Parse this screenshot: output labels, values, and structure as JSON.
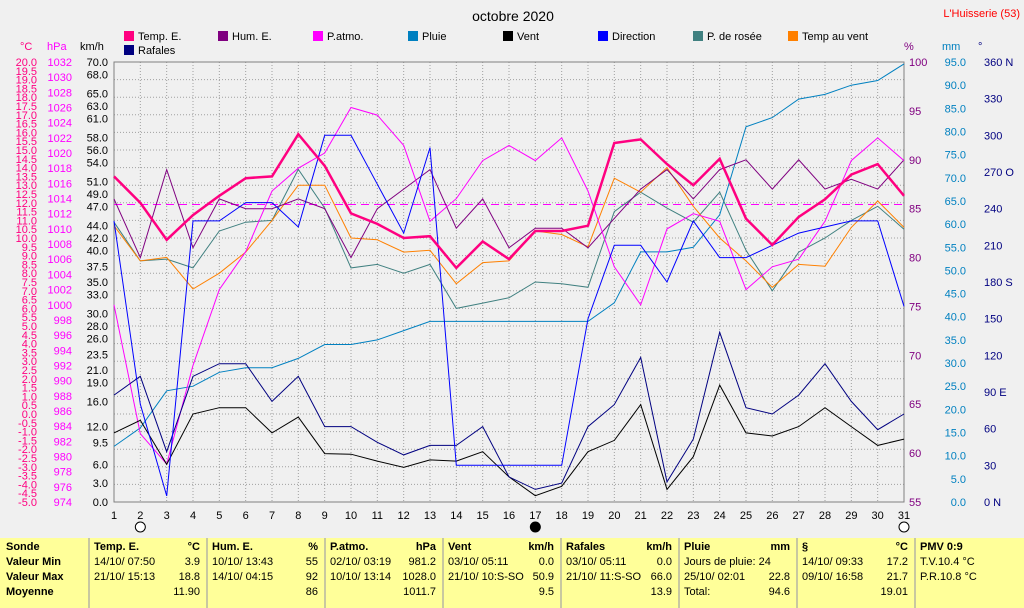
{
  "title": "octobre 2020",
  "station": "L'Huisserie (53)",
  "colors": {
    "temp": "#ff0080",
    "hum": "#800080",
    "patmo": "#ff00ff",
    "pluie": "#0080c0",
    "vent": "#000000",
    "direction": "#0000ff",
    "rosee": "#408080",
    "tempvent": "#ff8000",
    "rafales": "#000080",
    "gridline": "#a0a0a0",
    "mean": "#ff00ff"
  },
  "legend": {
    "temp": "Temp. E.",
    "hum": "Hum. E.",
    "patmo": "P.atmo.",
    "pluie": "Pluie",
    "vent": "Vent",
    "direction": "Direction",
    "rosee": "P. de rosée",
    "tempvent": "Temp au vent",
    "rafales": "Rafales"
  },
  "axis_units": {
    "temp": "°C",
    "patmo": "hPa",
    "wind": "km/h",
    "hum": "%",
    "rain": "mm",
    "dir": "°"
  },
  "chart_data": {
    "type": "line",
    "x": [
      1,
      2,
      3,
      4,
      5,
      6,
      7,
      8,
      9,
      10,
      11,
      12,
      13,
      14,
      15,
      16,
      17,
      18,
      19,
      20,
      21,
      22,
      23,
      24,
      25,
      26,
      27,
      28,
      29,
      30,
      31
    ],
    "axes": {
      "temp_c": {
        "min": -5,
        "max": 20,
        "step": 0.5
      },
      "patmo_hpa": {
        "min": 974,
        "max": 1032,
        "step": 2
      },
      "wind_kmh": {
        "min": 0,
        "max": 70
      },
      "hum_pct": {
        "min": 55,
        "max": 100,
        "step": 5
      },
      "rain_mm": {
        "min": 0,
        "max": 95,
        "step": 5
      },
      "dir_deg": {
        "min": 0,
        "max": 360,
        "step": 30
      }
    },
    "mean_temp": 11.9,
    "series": [
      {
        "name": "Temp. E.",
        "axis": "temp_c",
        "values": [
          13.5,
          12.0,
          9.9,
          11.3,
          12.4,
          13.4,
          13.5,
          15.9,
          14.1,
          11.4,
          10.8,
          10.0,
          10.1,
          8.3,
          9.8,
          8.8,
          10.4,
          10.4,
          10.7,
          15.4,
          15.6,
          14.2,
          13.0,
          14.5,
          11.1,
          9.6,
          11.2,
          12.2,
          13.6,
          14.2,
          12.4
        ]
      },
      {
        "name": "Hum. E.",
        "axis": "hum_pct",
        "values": [
          86,
          80,
          89,
          81,
          86,
          85,
          85,
          86,
          85,
          80,
          85,
          87,
          89,
          83,
          86,
          81,
          83,
          83,
          81,
          84,
          87,
          89,
          86,
          89,
          90,
          87,
          90,
          87,
          88,
          87,
          90
        ]
      },
      {
        "name": "P.atmo.",
        "axis": "patmo_hpa",
        "values": [
          1000,
          983,
          979,
          992,
          1002,
          1007,
          1015,
          1018,
          1020,
          1026,
          1025,
          1021,
          1011,
          1014,
          1019,
          1021,
          1019,
          1022,
          1015,
          1005,
          1000,
          1010,
          1012,
          1011,
          1002,
          1005,
          1006,
          1011,
          1019,
          1022,
          1019
        ]
      },
      {
        "name": "Pluie",
        "axis": "rain_mm",
        "values": [
          12,
          16,
          24,
          25,
          28,
          29,
          29,
          31,
          34,
          34,
          35,
          37,
          39,
          39,
          39,
          39,
          39,
          39,
          39,
          43,
          54,
          54,
          55,
          62,
          81,
          83,
          87,
          88,
          90,
          91,
          94.6
        ]
      },
      {
        "name": "Vent",
        "axis": "wind_kmh",
        "values": [
          11.0,
          13.0,
          6.0,
          14.0,
          15.0,
          15.0,
          11.0,
          13.5,
          7.7,
          7.6,
          6.5,
          5.5,
          6.7,
          6.5,
          8.0,
          4.0,
          1.0,
          2.5,
          8.0,
          9.8,
          15.5,
          2.0,
          7.2,
          18.6,
          11.0,
          10.5,
          12.0,
          15.0,
          12.0,
          9.0,
          10.0
        ]
      },
      {
        "name": "Direction",
        "axis": "dir_deg",
        "values": [
          230,
          80,
          5,
          230,
          230,
          245,
          245,
          225,
          300,
          300,
          260,
          220,
          290,
          30,
          30,
          30,
          30,
          30,
          150,
          210,
          210,
          180,
          230,
          200,
          200,
          210,
          220,
          225,
          230,
          230,
          160
        ]
      },
      {
        "name": "P. de rosée",
        "axis": "temp_c",
        "values": [
          10.9,
          8.7,
          8.8,
          8.3,
          10.4,
          10.9,
          11.0,
          13.9,
          11.7,
          8.3,
          8.5,
          8.0,
          8.5,
          6.0,
          6.3,
          6.6,
          7.5,
          7.4,
          7.2,
          11.5,
          12.6,
          11.7,
          10.9,
          12.6,
          9.3,
          7.0,
          9.2,
          10.0,
          11.0,
          11.8,
          10.5
        ]
      },
      {
        "name": "Temp au vent",
        "axis": "temp_c",
        "values": [
          10.7,
          8.7,
          8.9,
          7.1,
          8.0,
          9.2,
          11.0,
          13.0,
          13.0,
          10.0,
          9.9,
          9.2,
          9.3,
          7.4,
          8.6,
          8.7,
          10.4,
          10.2,
          9.5,
          13.4,
          12.6,
          14.0,
          11.8,
          10.0,
          8.7,
          7.2,
          8.5,
          8.4,
          10.6,
          12.1,
          10.6
        ]
      },
      {
        "name": "Rafales",
        "axis": "wind_kmh",
        "values": [
          17,
          20,
          8,
          20,
          22,
          22,
          16,
          20,
          12,
          12,
          9.5,
          7.5,
          9,
          9,
          12,
          4,
          2,
          3,
          12,
          15.5,
          23,
          3.2,
          10,
          27,
          15,
          14,
          17,
          22,
          16,
          11.5,
          14
        ]
      }
    ],
    "markers": [
      {
        "day": 2,
        "type": "new-moon-outline"
      },
      {
        "day": 17,
        "type": "full-moon"
      },
      {
        "day": 31,
        "type": "new-moon-outline"
      }
    ]
  },
  "stats": {
    "labels": {
      "title": "Sonde",
      "min": "Valeur Min",
      "max": "Valeur Max",
      "avg": "Moyenne"
    },
    "temp": {
      "title": "Temp. E.",
      "unit": "°C",
      "min_date": "14/10/ 07:50",
      "min_val": "3.9",
      "max_date": "21/10/ 15:13",
      "max_val": "18.8",
      "avg": "11.90"
    },
    "hum": {
      "title": "Hum. E.",
      "unit": "%",
      "min_date": "10/10/ 13:43",
      "min_val": "55",
      "max_date": "14/10/ 04:15",
      "max_val": "92",
      "avg": "86"
    },
    "patmo": {
      "title": "P.atmo.",
      "unit": "hPa",
      "min_date": "02/10/ 03:19",
      "min_val": "981.2",
      "max_date": "10/10/ 13:14",
      "max_val": "1028.0",
      "avg": "1011.7"
    },
    "vent": {
      "title": "Vent",
      "unit": "km/h",
      "min_date": "03/10/ 05:11",
      "min_val": "0.0",
      "max_date": "21/10/ 10:S-SO",
      "max_val": "50.9",
      "avg": "9.5"
    },
    "rafales": {
      "title": "Rafales",
      "unit": "km/h",
      "min_date": "03/10/ 05:11",
      "min_val": "0.0",
      "max_date": "21/10/ 11:S-SO",
      "max_val": "66.0",
      "avg": "13.9"
    },
    "pluie": {
      "title": "Pluie",
      "unit": "mm",
      "line1": "Jours de pluie: 24",
      "line2_date": "25/10/ 02:01",
      "line2_val": "22.8",
      "line3": "Total:",
      "line3_val": "94.6"
    },
    "misc": {
      "title": "§",
      "unit": "°C",
      "min_date": "14/10/ 09:33",
      "min_val": "17.2",
      "max_date": "09/10/ 16:58",
      "max_val": "21.7",
      "avg": "19.01"
    },
    "pmv": {
      "title": "PMV 0:9",
      "line1": "T.V.10.4 °C",
      "line2": "P.R.10.8 °C"
    }
  }
}
